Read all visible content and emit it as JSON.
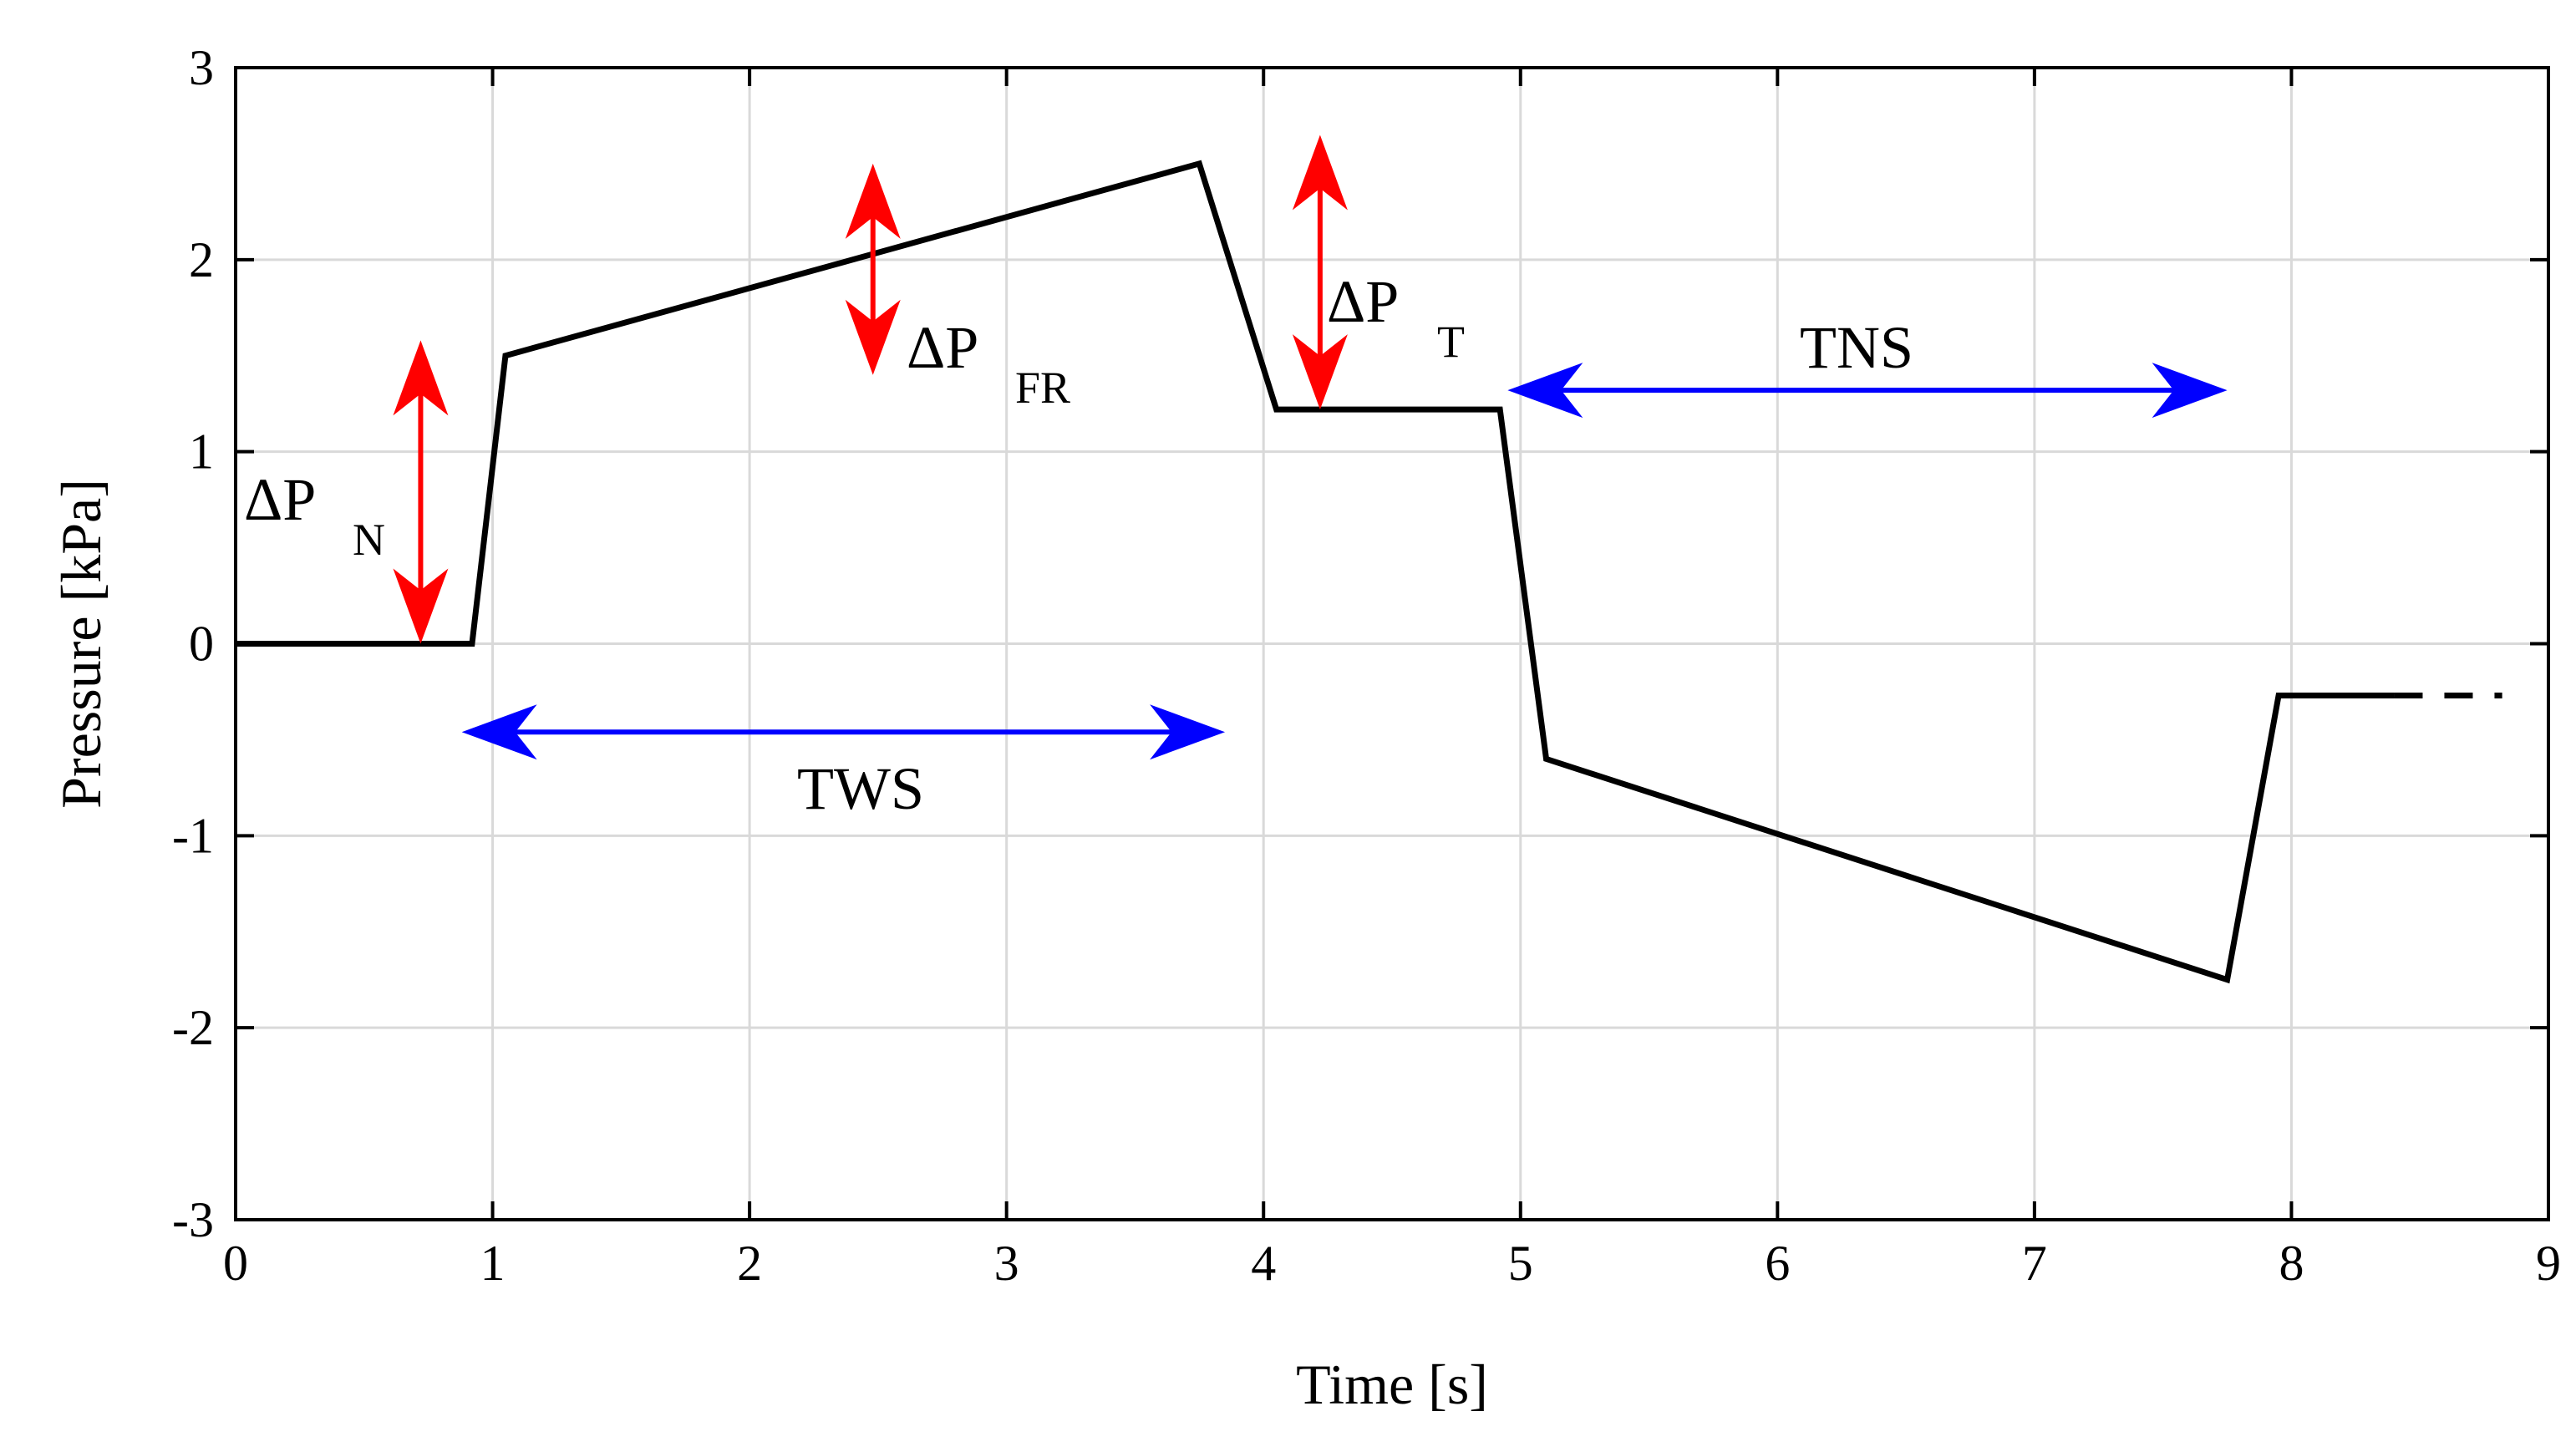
{
  "chart_data": {
    "type": "line",
    "xlabel": "Time [s]",
    "ylabel": "Pressure [kPa]",
    "xlim": [
      0,
      9
    ],
    "ylim": [
      -3,
      3
    ],
    "xticks": [
      "0",
      "1",
      "2",
      "3",
      "4",
      "5",
      "6",
      "7",
      "8",
      "9"
    ],
    "yticks": [
      "3",
      "2",
      "1",
      "0",
      "-1",
      "-2",
      "-3"
    ],
    "grid": true,
    "colors": {
      "series": "#000000",
      "pressure_arrow": "#ff0000",
      "phase_arrow": "#0000ff",
      "grid": "#d9d9d9"
    },
    "series": [
      {
        "name": "pressure",
        "x": [
          0,
          0.92,
          1.05,
          3.75,
          4.05,
          4.92,
          5.1,
          7.75,
          7.95,
          8.4
        ],
        "y": [
          0,
          0,
          1.5,
          2.5,
          1.22,
          1.22,
          -0.6,
          -1.75,
          -0.27,
          -0.27
        ]
      },
      {
        "name": "continuation",
        "style": "dashed",
        "x": [
          8.4,
          8.82
        ],
        "y": [
          -0.27,
          -0.27
        ]
      }
    ],
    "annotations": [
      {
        "id": "dpn",
        "type": "vertical-arrow",
        "color": "red",
        "x": 0.72,
        "y_from": 0,
        "y_to": 1.58,
        "label_main": "ΔP",
        "label_sub": "N"
      },
      {
        "id": "dpfr",
        "type": "vertical-arrow",
        "color": "red",
        "x": 2.48,
        "y_from": 1.4,
        "y_to": 2.5,
        "label_main": "ΔP",
        "label_sub": "FR"
      },
      {
        "id": "dpt",
        "type": "vertical-arrow",
        "color": "red",
        "x": 4.22,
        "y_from": 1.22,
        "y_to": 2.65,
        "label_main": "ΔP",
        "label_sub": "T"
      },
      {
        "id": "tws",
        "type": "horizontal-arrow",
        "color": "blue",
        "y": -0.46,
        "x_from": 0.88,
        "x_to": 3.85,
        "label_main": "TWS"
      },
      {
        "id": "tns",
        "type": "horizontal-arrow",
        "color": "blue",
        "y": 1.32,
        "x_from": 4.95,
        "x_to": 7.75,
        "label_main": "TNS"
      }
    ]
  }
}
